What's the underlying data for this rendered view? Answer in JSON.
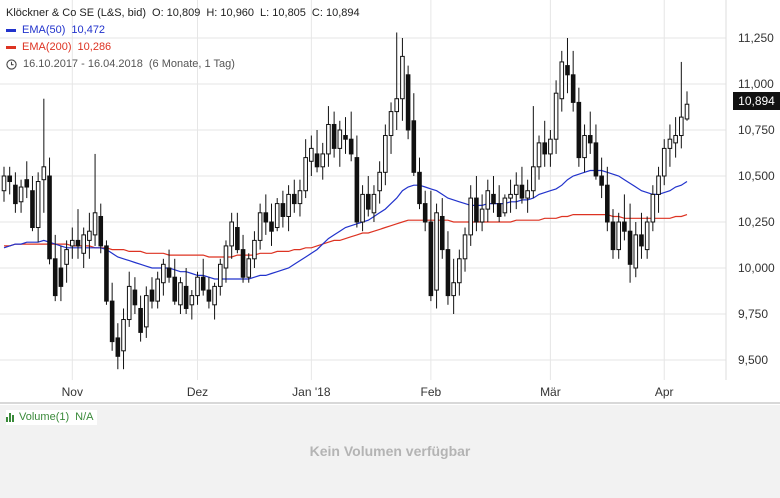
{
  "legend": {
    "title": "Klöckner & Co SE (L&S, bid)",
    "open": "O: 10,809",
    "high": "H: 10,960",
    "low": "L: 10,805",
    "close": "C: 10,894",
    "ema50_label": "EMA(50)",
    "ema50_value": "10,472",
    "ema200_label": "EMA(200)",
    "ema200_value": "10,286",
    "range": "16.10.2017 - 16.04.2018",
    "period": "(6 Monate, 1 Tag)",
    "clock_icon": "clock-icon"
  },
  "price_tag": "10,894",
  "volume": {
    "label": "Volume(1)",
    "value": "N/A",
    "empty_text": "Kein Volumen verfügbar",
    "icon": "bar-chart-icon"
  },
  "colors": {
    "candle": "#111111",
    "ema50": "#2233cc",
    "ema200": "#dd3322",
    "grid": "#e6e6e6",
    "volume": "#3a8a3a"
  },
  "chart_data": {
    "type": "candlestick",
    "grid": true,
    "ylim": [
      9.35,
      11.32
    ],
    "yticks": [
      "11,250",
      "11,000",
      "10,750",
      "10,500",
      "10,250",
      "10,000",
      "9,750",
      "9,500"
    ],
    "ytick_values": [
      11.25,
      11.0,
      10.75,
      10.5,
      10.25,
      10.0,
      9.75,
      9.5
    ],
    "xticks": [
      "Nov",
      "Dez",
      "Jan '18",
      "Feb",
      "Mär",
      "Apr"
    ],
    "xtick_index": [
      12,
      34,
      54,
      75,
      96,
      116
    ],
    "candles": [
      [
        10.42,
        10.55,
        10.36,
        10.5
      ],
      [
        10.5,
        10.55,
        10.4,
        10.47
      ],
      [
        10.45,
        10.52,
        10.3,
        10.35
      ],
      [
        10.36,
        10.48,
        10.3,
        10.44
      ],
      [
        10.48,
        10.58,
        10.38,
        10.44
      ],
      [
        10.42,
        10.5,
        10.2,
        10.22
      ],
      [
        10.22,
        10.52,
        10.14,
        10.47
      ],
      [
        10.48,
        10.92,
        10.3,
        10.55
      ],
      [
        10.5,
        10.6,
        10.02,
        10.05
      ],
      [
        10.05,
        10.18,
        9.82,
        9.85
      ],
      [
        10.0,
        10.12,
        9.82,
        9.9
      ],
      [
        10.02,
        10.15,
        9.92,
        10.1
      ],
      [
        10.12,
        10.22,
        10.05,
        10.15
      ],
      [
        10.15,
        10.32,
        10.05,
        10.12
      ],
      [
        10.08,
        10.22,
        10.0,
        10.18
      ],
      [
        10.15,
        10.3,
        10.05,
        10.2
      ],
      [
        10.18,
        10.62,
        10.12,
        10.3
      ],
      [
        10.28,
        10.35,
        10.08,
        10.12
      ],
      [
        10.12,
        10.15,
        9.8,
        9.82
      ],
      [
        9.82,
        9.92,
        9.55,
        9.6
      ],
      [
        9.62,
        9.7,
        9.45,
        9.52
      ],
      [
        9.55,
        9.78,
        9.45,
        9.72
      ],
      [
        9.72,
        9.98,
        9.68,
        9.9
      ],
      [
        9.88,
        9.95,
        9.75,
        9.8
      ],
      [
        9.78,
        9.85,
        9.6,
        9.65
      ],
      [
        9.68,
        9.9,
        9.62,
        9.85
      ],
      [
        9.88,
        9.95,
        9.78,
        9.82
      ],
      [
        9.82,
        9.98,
        9.78,
        9.94
      ],
      [
        9.92,
        10.05,
        9.85,
        10.02
      ],
      [
        10.0,
        10.1,
        9.92,
        9.95
      ],
      [
        9.95,
        10.05,
        9.8,
        9.82
      ],
      [
        9.8,
        9.95,
        9.75,
        9.92
      ],
      [
        9.9,
        10.0,
        9.75,
        9.78
      ],
      [
        9.8,
        9.88,
        9.72,
        9.85
      ],
      [
        9.85,
        9.98,
        9.8,
        9.95
      ],
      [
        9.95,
        10.05,
        9.85,
        9.88
      ],
      [
        9.88,
        9.95,
        9.78,
        9.82
      ],
      [
        9.8,
        9.92,
        9.72,
        9.9
      ],
      [
        9.9,
        10.05,
        9.85,
        10.02
      ],
      [
        10.0,
        10.15,
        9.92,
        10.12
      ],
      [
        10.12,
        10.3,
        10.05,
        10.25
      ],
      [
        10.22,
        10.3,
        10.08,
        10.1
      ],
      [
        10.1,
        10.18,
        9.92,
        9.95
      ],
      [
        9.95,
        10.08,
        9.92,
        10.05
      ],
      [
        10.05,
        10.2,
        10.0,
        10.15
      ],
      [
        10.15,
        10.35,
        10.1,
        10.3
      ],
      [
        10.3,
        10.4,
        10.18,
        10.25
      ],
      [
        10.25,
        10.35,
        10.12,
        10.2
      ],
      [
        10.22,
        10.38,
        10.2,
        10.35
      ],
      [
        10.35,
        10.42,
        10.22,
        10.28
      ],
      [
        10.28,
        10.45,
        10.2,
        10.4
      ],
      [
        10.4,
        10.48,
        10.3,
        10.35
      ],
      [
        10.35,
        10.48,
        10.28,
        10.42
      ],
      [
        10.42,
        10.7,
        10.38,
        10.6
      ],
      [
        10.58,
        10.72,
        10.5,
        10.65
      ],
      [
        10.62,
        10.75,
        10.52,
        10.55
      ],
      [
        10.55,
        10.68,
        10.48,
        10.62
      ],
      [
        10.62,
        10.88,
        10.55,
        10.78
      ],
      [
        10.78,
        10.85,
        10.6,
        10.65
      ],
      [
        10.65,
        10.8,
        10.55,
        10.75
      ],
      [
        10.72,
        10.82,
        10.62,
        10.7
      ],
      [
        10.7,
        10.85,
        10.58,
        10.62
      ],
      [
        10.6,
        10.72,
        10.22,
        10.25
      ],
      [
        10.25,
        10.45,
        10.2,
        10.4
      ],
      [
        10.4,
        10.5,
        10.28,
        10.32
      ],
      [
        10.3,
        10.45,
        10.25,
        10.4
      ],
      [
        10.42,
        10.58,
        10.35,
        10.52
      ],
      [
        10.52,
        10.78,
        10.45,
        10.72
      ],
      [
        10.72,
        10.9,
        10.62,
        10.85
      ],
      [
        10.85,
        11.28,
        10.75,
        10.92
      ],
      [
        10.92,
        11.25,
        10.8,
        11.15
      ],
      [
        11.05,
        11.1,
        10.7,
        10.75
      ],
      [
        10.8,
        10.95,
        10.5,
        10.52
      ],
      [
        10.52,
        10.6,
        10.32,
        10.35
      ],
      [
        10.35,
        10.42,
        10.2,
        10.25
      ],
      [
        10.25,
        10.42,
        9.82,
        9.85
      ],
      [
        9.88,
        10.35,
        9.78,
        10.3
      ],
      [
        10.28,
        10.38,
        10.05,
        10.1
      ],
      [
        10.1,
        10.2,
        9.8,
        9.85
      ],
      [
        9.85,
        10.05,
        9.75,
        9.92
      ],
      [
        9.92,
        10.1,
        9.85,
        10.05
      ],
      [
        10.05,
        10.22,
        9.98,
        10.18
      ],
      [
        10.18,
        10.45,
        10.12,
        10.38
      ],
      [
        10.38,
        10.5,
        10.2,
        10.25
      ],
      [
        10.25,
        10.4,
        10.2,
        10.32
      ],
      [
        10.32,
        10.48,
        10.25,
        10.42
      ],
      [
        10.4,
        10.5,
        10.3,
        10.35
      ],
      [
        10.35,
        10.45,
        10.25,
        10.28
      ],
      [
        10.3,
        10.4,
        10.28,
        10.38
      ],
      [
        10.38,
        10.48,
        10.3,
        10.4
      ],
      [
        10.4,
        10.52,
        10.32,
        10.45
      ],
      [
        10.45,
        10.55,
        10.35,
        10.38
      ],
      [
        10.38,
        10.48,
        10.3,
        10.42
      ],
      [
        10.42,
        10.88,
        10.38,
        10.55
      ],
      [
        10.55,
        10.72,
        10.48,
        10.68
      ],
      [
        10.68,
        10.8,
        10.55,
        10.62
      ],
      [
        10.62,
        10.75,
        10.55,
        10.7
      ],
      [
        10.7,
        11.02,
        10.62,
        10.95
      ],
      [
        10.92,
        11.18,
        10.85,
        11.12
      ],
      [
        11.1,
        11.25,
        10.95,
        11.05
      ],
      [
        11.05,
        11.18,
        10.85,
        10.9
      ],
      [
        10.9,
        10.98,
        10.55,
        10.6
      ],
      [
        10.6,
        10.78,
        10.52,
        10.72
      ],
      [
        10.72,
        10.85,
        10.62,
        10.68
      ],
      [
        10.68,
        10.78,
        10.48,
        10.5
      ],
      [
        10.5,
        10.6,
        10.38,
        10.45
      ],
      [
        10.45,
        10.55,
        10.2,
        10.25
      ],
      [
        10.25,
        10.32,
        10.05,
        10.1
      ],
      [
        10.1,
        10.3,
        10.05,
        10.25
      ],
      [
        10.25,
        10.4,
        10.15,
        10.2
      ],
      [
        10.2,
        10.35,
        9.92,
        10.02
      ],
      [
        10.0,
        10.25,
        9.95,
        10.18
      ],
      [
        10.18,
        10.3,
        10.05,
        10.12
      ],
      [
        10.1,
        10.28,
        10.05,
        10.25
      ],
      [
        10.25,
        10.45,
        10.2,
        10.4
      ],
      [
        10.4,
        10.55,
        10.3,
        10.5
      ],
      [
        10.5,
        10.7,
        10.45,
        10.65
      ],
      [
        10.65,
        10.78,
        10.55,
        10.7
      ],
      [
        10.68,
        10.82,
        10.6,
        10.72
      ],
      [
        10.72,
        11.12,
        10.65,
        10.82
      ],
      [
        10.81,
        10.96,
        10.8,
        10.89
      ]
    ],
    "ema50": [
      10.11,
      10.12,
      10.13,
      10.13,
      10.14,
      10.14,
      10.14,
      10.15,
      10.14,
      10.13,
      10.12,
      10.11,
      10.11,
      10.11,
      10.11,
      10.11,
      10.11,
      10.11,
      10.1,
      10.08,
      10.06,
      10.05,
      10.04,
      10.03,
      10.02,
      10.01,
      10.0,
      10.0,
      10.0,
      10.0,
      9.99,
      9.98,
      9.98,
      9.97,
      9.96,
      9.96,
      9.95,
      9.94,
      9.94,
      9.94,
      9.94,
      9.94,
      9.94,
      9.94,
      9.95,
      9.96,
      9.96,
      9.97,
      9.98,
      9.99,
      10.0,
      10.02,
      10.04,
      10.06,
      10.08,
      10.1,
      10.13,
      10.16,
      10.18,
      10.2,
      10.22,
      10.23,
      10.24,
      10.25,
      10.26,
      10.28,
      10.3,
      10.32,
      10.35,
      10.38,
      10.42,
      10.44,
      10.45,
      10.45,
      10.44,
      10.43,
      10.42,
      10.4,
      10.38,
      10.37,
      10.36,
      10.35,
      10.34,
      10.34,
      10.34,
      10.35,
      10.35,
      10.35,
      10.35,
      10.36,
      10.36,
      10.37,
      10.37,
      10.38,
      10.4,
      10.41,
      10.42,
      10.43,
      10.45,
      10.48,
      10.5,
      10.51,
      10.52,
      10.53,
      10.53,
      10.53,
      10.52,
      10.51,
      10.5,
      10.48,
      10.46,
      10.44,
      10.42,
      10.41,
      10.4,
      10.4,
      10.41,
      10.42,
      10.44,
      10.45,
      10.47
    ],
    "ema200": [
      10.12,
      10.12,
      10.13,
      10.13,
      10.13,
      10.13,
      10.13,
      10.13,
      10.13,
      10.13,
      10.13,
      10.13,
      10.12,
      10.12,
      10.12,
      10.12,
      10.11,
      10.11,
      10.11,
      10.1,
      10.1,
      10.1,
      10.09,
      10.09,
      10.09,
      10.08,
      10.08,
      10.08,
      10.08,
      10.07,
      10.07,
      10.07,
      10.07,
      10.07,
      10.07,
      10.07,
      10.06,
      10.06,
      10.06,
      10.06,
      10.06,
      10.07,
      10.07,
      10.07,
      10.07,
      10.08,
      10.08,
      10.08,
      10.09,
      10.09,
      10.09,
      10.1,
      10.1,
      10.11,
      10.11,
      10.12,
      10.13,
      10.14,
      10.15,
      10.15,
      10.16,
      10.17,
      10.18,
      10.19,
      10.19,
      10.2,
      10.21,
      10.22,
      10.23,
      10.24,
      10.25,
      10.26,
      10.26,
      10.26,
      10.26,
      10.26,
      10.26,
      10.26,
      10.26,
      10.25,
      10.25,
      10.25,
      10.25,
      10.25,
      10.25,
      10.25,
      10.25,
      10.25,
      10.25,
      10.25,
      10.26,
      10.26,
      10.26,
      10.26,
      10.26,
      10.27,
      10.27,
      10.27,
      10.28,
      10.28,
      10.29,
      10.29,
      10.29,
      10.29,
      10.29,
      10.29,
      10.29,
      10.28,
      10.28,
      10.27,
      10.27,
      10.27,
      10.27,
      10.27,
      10.27,
      10.27,
      10.27,
      10.27,
      10.28,
      10.28,
      10.29
    ]
  }
}
